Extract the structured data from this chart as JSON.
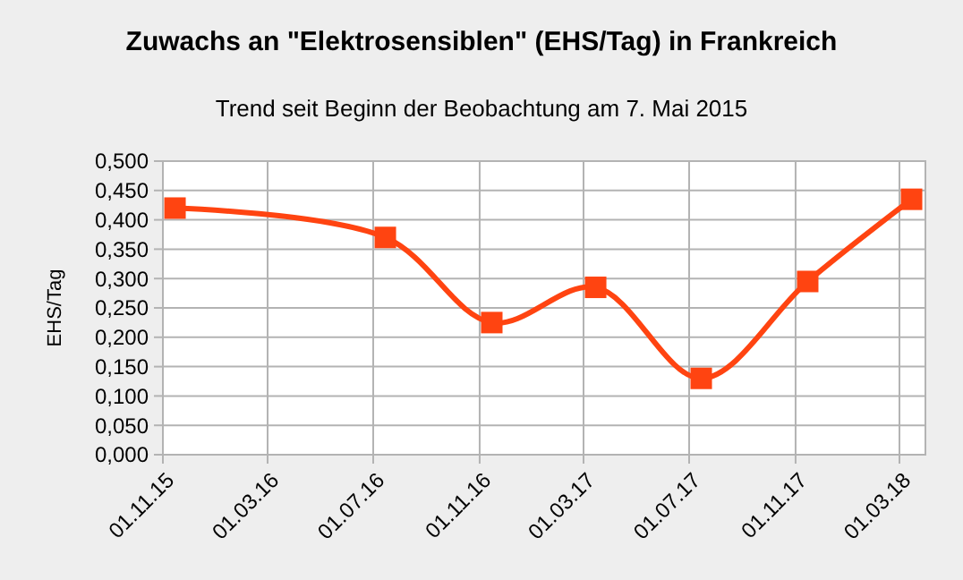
{
  "chart_data": {
    "type": "line",
    "title": "Zuwachs an \"Elektrosensiblen\" (EHS/Tag) in Frankreich",
    "subtitle": "Trend seit Beginn der Beobachtung am 7. Mai 2015",
    "ylabel": "EHS/Tag",
    "x": [
      "2015-11-15",
      "2016-07-15",
      "2016-11-15",
      "2017-03-15",
      "2017-07-15",
      "2017-11-15",
      "2018-03-15"
    ],
    "series": [
      {
        "color": "#ff4411",
        "values": [
          0.42,
          0.37,
          0.225,
          0.285,
          0.13,
          0.295,
          0.435
        ]
      }
    ],
    "xlim": [
      "2015-11-01",
      "2018-03-31"
    ],
    "xticks": [
      {
        "value": "2015-11-01",
        "label": "01.11.15"
      },
      {
        "value": "2016-03-01",
        "label": "01.03.16"
      },
      {
        "value": "2016-07-01",
        "label": "01.07.16"
      },
      {
        "value": "2016-11-01",
        "label": "01.11.16"
      },
      {
        "value": "2017-03-01",
        "label": "01.03.17"
      },
      {
        "value": "2017-07-01",
        "label": "01.07.17"
      },
      {
        "value": "2017-11-01",
        "label": "01.11.17"
      },
      {
        "value": "2018-03-01",
        "label": "01.03.18"
      }
    ],
    "ylim": [
      0,
      0.5
    ],
    "yticks": [
      {
        "value": 0,
        "label": "0,000"
      },
      {
        "value": 0.05,
        "label": "0,050"
      },
      {
        "value": 0.1,
        "label": "0,100"
      },
      {
        "value": 0.15,
        "label": "0,150"
      },
      {
        "value": 0.2,
        "label": "0,200"
      },
      {
        "value": 0.25,
        "label": "0,250"
      },
      {
        "value": 0.3,
        "label": "0,300"
      },
      {
        "value": 0.35,
        "label": "0,350"
      },
      {
        "value": 0.4,
        "label": "0,400"
      },
      {
        "value": 0.45,
        "label": "0,450"
      },
      {
        "value": 0.5,
        "label": "0,500"
      }
    ],
    "grid": true,
    "marker": "square",
    "line_style": "solid"
  }
}
